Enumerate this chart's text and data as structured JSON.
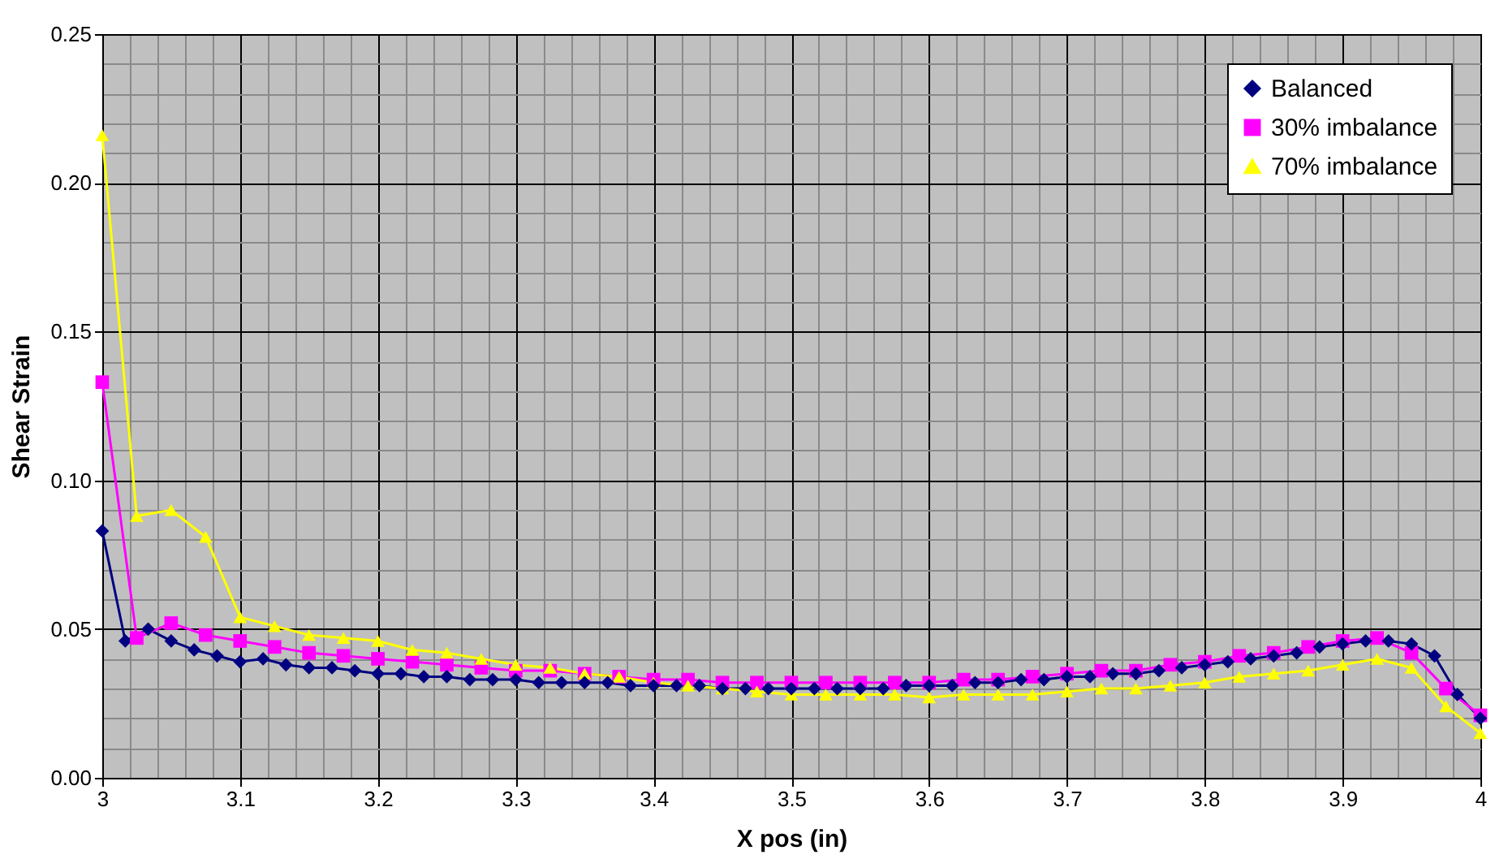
{
  "chart_data": {
    "type": "line",
    "xlabel": "X pos (in)",
    "ylabel": "Shear Strain",
    "xlim": [
      3,
      4
    ],
    "ylim": [
      0,
      0.25
    ],
    "xticks": [
      3,
      3.1,
      3.2,
      3.3,
      3.4,
      3.5,
      3.6,
      3.7,
      3.8,
      3.9,
      4
    ],
    "yticks": [
      {
        "value": 0,
        "label": "0.00"
      },
      {
        "value": 0.05,
        "label": "0.05"
      },
      {
        "value": 0.1,
        "label": "0.10"
      },
      {
        "value": 0.15,
        "label": "0.15"
      },
      {
        "value": 0.2,
        "label": "0.20"
      },
      {
        "value": 0.25,
        "label": "0.25"
      }
    ],
    "grid": true,
    "legend": "top right",
    "series": [
      {
        "name": "Balanced",
        "color": "#000080",
        "marker": "diamond",
        "x": [
          3,
          3.0167,
          3.0333,
          3.05,
          3.0667,
          3.0833,
          3.1,
          3.1167,
          3.1333,
          3.15,
          3.1667,
          3.1833,
          3.2,
          3.2167,
          3.2333,
          3.25,
          3.2667,
          3.2833,
          3.3,
          3.3167,
          3.3333,
          3.35,
          3.3667,
          3.3833,
          3.4,
          3.4167,
          3.4333,
          3.45,
          3.4667,
          3.4833,
          3.5,
          3.5167,
          3.5333,
          3.55,
          3.5667,
          3.5833,
          3.6,
          3.6167,
          3.6333,
          3.65,
          3.6667,
          3.6833,
          3.7,
          3.7167,
          3.7333,
          3.75,
          3.7667,
          3.7833,
          3.8,
          3.8167,
          3.8333,
          3.85,
          3.8667,
          3.8833,
          3.9,
          3.9167,
          3.9333,
          3.95,
          3.9667,
          3.9833,
          4
        ],
        "values": [
          0.083,
          0.046,
          0.05,
          0.046,
          0.043,
          0.041,
          0.039,
          0.04,
          0.038,
          0.037,
          0.037,
          0.036,
          0.035,
          0.035,
          0.034,
          0.034,
          0.033,
          0.033,
          0.033,
          0.032,
          0.032,
          0.032,
          0.032,
          0.031,
          0.031,
          0.031,
          0.031,
          0.03,
          0.03,
          0.03,
          0.03,
          0.03,
          0.03,
          0.03,
          0.03,
          0.031,
          0.031,
          0.031,
          0.032,
          0.032,
          0.033,
          0.033,
          0.034,
          0.034,
          0.035,
          0.035,
          0.036,
          0.037,
          0.038,
          0.039,
          0.04,
          0.041,
          0.042,
          0.044,
          0.045,
          0.046,
          0.046,
          0.045,
          0.041,
          0.028,
          0.02
        ]
      },
      {
        "name": "30% imbalance",
        "color": "#ff00ff",
        "marker": "square",
        "x": [
          3,
          3.025,
          3.05,
          3.075,
          3.1,
          3.125,
          3.15,
          3.175,
          3.2,
          3.225,
          3.25,
          3.275,
          3.3,
          3.325,
          3.35,
          3.375,
          3.4,
          3.425,
          3.45,
          3.475,
          3.5,
          3.525,
          3.55,
          3.575,
          3.6,
          3.625,
          3.65,
          3.675,
          3.7,
          3.725,
          3.75,
          3.775,
          3.8,
          3.825,
          3.85,
          3.875,
          3.9,
          3.925,
          3.95,
          3.975,
          4
        ],
        "values": [
          0.133,
          0.047,
          0.052,
          0.048,
          0.046,
          0.044,
          0.042,
          0.041,
          0.04,
          0.039,
          0.038,
          0.037,
          0.036,
          0.036,
          0.035,
          0.034,
          0.033,
          0.033,
          0.032,
          0.032,
          0.032,
          0.032,
          0.032,
          0.032,
          0.032,
          0.033,
          0.033,
          0.034,
          0.035,
          0.036,
          0.036,
          0.038,
          0.039,
          0.041,
          0.042,
          0.044,
          0.046,
          0.047,
          0.042,
          0.03,
          0.021
        ]
      },
      {
        "name": "70% imbalance",
        "color": "#ffff00",
        "marker": "triangle",
        "x": [
          3,
          3.025,
          3.05,
          3.075,
          3.1,
          3.125,
          3.15,
          3.175,
          3.2,
          3.225,
          3.25,
          3.275,
          3.3,
          3.325,
          3.35,
          3.375,
          3.4,
          3.425,
          3.45,
          3.475,
          3.5,
          3.525,
          3.55,
          3.575,
          3.6,
          3.625,
          3.65,
          3.675,
          3.7,
          3.725,
          3.75,
          3.775,
          3.8,
          3.825,
          3.85,
          3.875,
          3.9,
          3.925,
          3.95,
          3.975,
          4
        ],
        "values": [
          0.216,
          0.088,
          0.09,
          0.081,
          0.054,
          0.051,
          0.048,
          0.047,
          0.046,
          0.043,
          0.042,
          0.04,
          0.038,
          0.037,
          0.035,
          0.034,
          0.032,
          0.031,
          0.03,
          0.029,
          0.028,
          0.028,
          0.028,
          0.028,
          0.027,
          0.028,
          0.028,
          0.028,
          0.029,
          0.03,
          0.03,
          0.031,
          0.032,
          0.034,
          0.035,
          0.036,
          0.038,
          0.04,
          0.037,
          0.024,
          0.015
        ]
      }
    ]
  }
}
